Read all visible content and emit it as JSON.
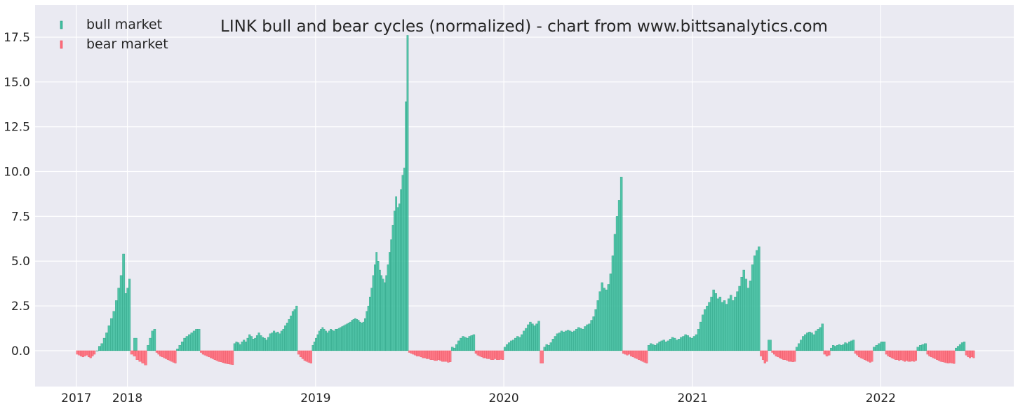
{
  "chart_data": {
    "type": "bar",
    "title": "LINK bull and bear cycles (normalized)  - chart from www.bittsanalytics.com",
    "xlabel": "",
    "ylabel": "",
    "ylim": [
      -2.0,
      19.3
    ],
    "xlim": [
      "2017-07-06",
      "2022-09-16"
    ],
    "grid": true,
    "legend": "top-left",
    "x_ticks": [
      {
        "date": "2017-09-24",
        "label": "2017"
      },
      {
        "date": "2018-01-01",
        "label": "2018"
      },
      {
        "date": "2019-01-01",
        "label": "2019"
      },
      {
        "date": "2020-01-01",
        "label": "2020"
      },
      {
        "date": "2021-01-01",
        "label": "2021"
      },
      {
        "date": "2022-01-01",
        "label": "2022"
      }
    ],
    "y_ticks": [
      {
        "value": 0.0,
        "label": "0.0"
      },
      {
        "value": 2.5,
        "label": "2.5"
      },
      {
        "value": 5.0,
        "label": "5.0"
      },
      {
        "value": 7.5,
        "label": "7.5"
      },
      {
        "value": 10.0,
        "label": "10.0"
      },
      {
        "value": 12.5,
        "label": "12.5"
      },
      {
        "value": 15.0,
        "label": "15.0"
      },
      {
        "value": 17.5,
        "label": "17.5"
      }
    ],
    "series": [
      {
        "name": "bull market",
        "color": "#3fbf9f"
      },
      {
        "name": "bear market",
        "color": "#ff6b7a"
      }
    ],
    "colors": {
      "background": "#eaeaf2",
      "grid": "#ffffff",
      "bull_edge": "#2a9d80",
      "bear_edge": "#e8505f"
    },
    "bull_segments": [
      {
        "start": "2017-11-01",
        "end": "2017-12-26",
        "values": [
          0.0,
          0.25,
          0.4,
          0.7,
          1.0,
          1.4,
          1.8,
          2.2,
          2.8,
          3.5,
          4.2,
          5.4
        ]
      },
      {
        "start": "2017-12-27",
        "end": "2018-01-06",
        "values": [
          3.2,
          3.5,
          4.0
        ]
      },
      {
        "start": "2018-01-13",
        "end": "2018-01-19",
        "values": [
          0.7
        ]
      },
      {
        "start": "2018-02-08",
        "end": "2018-02-24",
        "values": [
          0.3,
          0.7,
          1.1,
          1.2
        ]
      },
      {
        "start": "2018-04-06",
        "end": "2018-05-21",
        "values": [
          0.1,
          0.3,
          0.5,
          0.7,
          0.8,
          0.9,
          1.0,
          1.1,
          1.2,
          1.2
        ]
      },
      {
        "start": "2018-07-26",
        "end": "2018-11-26",
        "values": [
          0.4,
          0.5,
          0.45,
          0.35,
          0.5,
          0.6,
          0.5,
          0.7,
          0.9,
          0.8,
          0.65,
          0.7,
          0.85,
          1.0,
          0.85,
          0.75,
          0.7,
          0.6,
          0.75,
          0.95,
          1.0,
          1.1,
          1.0,
          1.05,
          0.95,
          1.1,
          1.2,
          1.4,
          1.55,
          1.75,
          1.95,
          2.2,
          2.3,
          2.5
        ]
      },
      {
        "start": "2018-12-25",
        "end": "2019-06-29",
        "values": [
          0.3,
          0.5,
          0.7,
          0.9,
          1.1,
          1.2,
          1.3,
          1.2,
          1.1,
          1.0,
          1.1,
          1.2,
          1.15,
          1.1,
          1.2,
          1.2,
          1.25,
          1.3,
          1.35,
          1.4,
          1.45,
          1.5,
          1.55,
          1.6,
          1.7,
          1.75,
          1.8,
          1.75,
          1.7,
          1.6,
          1.55,
          1.6,
          1.8,
          2.2,
          2.5,
          3.0,
          3.5,
          4.2,
          4.8,
          5.5,
          5.0,
          4.5,
          4.2,
          4.0,
          3.8,
          4.2,
          4.8,
          5.5,
          6.2,
          7.0,
          7.8,
          8.6,
          8.0,
          8.2,
          9.0,
          9.8,
          10.2,
          13.9,
          17.6
        ]
      },
      {
        "start": "2019-09-21",
        "end": "2019-11-05",
        "values": [
          0.2,
          0.15,
          0.35,
          0.55,
          0.7,
          0.8,
          0.75,
          0.7,
          0.8,
          0.85,
          0.9
        ]
      },
      {
        "start": "2020-01-01",
        "end": "2020-03-10",
        "values": [
          0.2,
          0.35,
          0.45,
          0.55,
          0.6,
          0.7,
          0.8,
          0.75,
          0.9,
          1.1,
          1.25,
          1.45,
          1.6,
          1.5,
          1.4,
          1.5,
          1.65
        ]
      },
      {
        "start": "2020-03-18",
        "end": "2020-08-17",
        "values": [
          0.2,
          0.35,
          0.3,
          0.45,
          0.65,
          0.8,
          0.95,
          1.0,
          1.1,
          1.05,
          1.1,
          1.15,
          1.1,
          1.05,
          1.1,
          1.2,
          1.3,
          1.25,
          1.2,
          1.35,
          1.45,
          1.5,
          1.7,
          1.9,
          2.3,
          2.8,
          3.3,
          3.8,
          3.5,
          3.4,
          3.7,
          4.3,
          5.3,
          6.5,
          7.5,
          8.4,
          9.7
        ]
      },
      {
        "start": "2020-10-06",
        "end": "2021-05-11",
        "values": [
          0.3,
          0.4,
          0.35,
          0.3,
          0.4,
          0.5,
          0.55,
          0.6,
          0.5,
          0.55,
          0.65,
          0.75,
          0.7,
          0.6,
          0.65,
          0.75,
          0.8,
          0.9,
          0.85,
          0.75,
          0.7,
          0.8,
          0.9,
          1.2,
          1.6,
          2.0,
          2.3,
          2.5,
          2.7,
          3.0,
          3.4,
          3.2,
          2.9,
          3.0,
          2.7,
          2.8,
          2.6,
          2.9,
          3.1,
          2.8,
          3.0,
          3.3,
          3.6,
          4.1,
          4.5,
          4.0,
          3.5,
          3.9,
          4.8,
          5.3,
          5.6,
          5.8
        ]
      },
      {
        "start": "2021-05-27",
        "end": "2021-06-02",
        "values": [
          0.6
        ]
      },
      {
        "start": "2021-07-20",
        "end": "2021-09-11",
        "values": [
          0.2,
          0.4,
          0.6,
          0.8,
          0.9,
          1.0,
          1.05,
          1.0,
          0.9,
          1.1,
          1.2,
          1.3,
          1.5
        ]
      },
      {
        "start": "2021-09-25",
        "end": "2021-11-10",
        "values": [
          0.15,
          0.3,
          0.25,
          0.3,
          0.35,
          0.3,
          0.35,
          0.45,
          0.4,
          0.5,
          0.55,
          0.6
        ]
      },
      {
        "start": "2021-12-17",
        "end": "2022-01-09",
        "values": [
          0.2,
          0.3,
          0.4,
          0.5,
          0.5
        ]
      },
      {
        "start": "2022-03-12",
        "end": "2022-03-30",
        "values": [
          0.2,
          0.3,
          0.35,
          0.4
        ]
      },
      {
        "start": "2022-05-25",
        "end": "2022-06-13",
        "values": [
          0.15,
          0.25,
          0.35,
          0.45,
          0.5
        ]
      }
    ],
    "bear_segments": [
      {
        "start": "2017-09-24",
        "end": "2017-10-30",
        "values": [
          -0.2,
          -0.25,
          -0.3,
          -0.35,
          -0.3,
          -0.25,
          -0.35,
          -0.4,
          -0.3,
          -0.2
        ]
      },
      {
        "start": "2018-01-07",
        "end": "2018-02-07",
        "values": [
          -0.2,
          -0.3,
          -0.5,
          -0.6,
          -0.7,
          -0.8
        ]
      },
      {
        "start": "2018-02-25",
        "end": "2018-04-05",
        "values": [
          -0.1,
          -0.2,
          -0.3,
          -0.35,
          -0.4,
          -0.45,
          -0.5,
          -0.55,
          -0.6,
          -0.65,
          -0.7
        ]
      },
      {
        "start": "2018-05-22",
        "end": "2018-07-25",
        "values": [
          -0.1,
          -0.2,
          -0.25,
          -0.3,
          -0.35,
          -0.4,
          -0.45,
          -0.5,
          -0.55,
          -0.6,
          -0.62,
          -0.66,
          -0.7,
          -0.72,
          -0.74,
          -0.76,
          -0.78
        ]
      },
      {
        "start": "2018-11-27",
        "end": "2018-12-24",
        "values": [
          -0.2,
          -0.35,
          -0.45,
          -0.55,
          -0.6,
          -0.65,
          -0.7
        ]
      },
      {
        "start": "2019-06-30",
        "end": "2019-09-20",
        "values": [
          -0.1,
          -0.15,
          -0.2,
          -0.25,
          -0.3,
          -0.3,
          -0.35,
          -0.4,
          -0.4,
          -0.45,
          -0.45,
          -0.5,
          -0.5,
          -0.55,
          -0.55,
          -0.5,
          -0.55,
          -0.6,
          -0.6,
          -0.6,
          -0.65,
          -0.62
        ]
      },
      {
        "start": "2019-11-06",
        "end": "2019-12-31",
        "values": [
          -0.15,
          -0.25,
          -0.3,
          -0.35,
          -0.4,
          -0.4,
          -0.45,
          -0.45,
          -0.5,
          -0.5,
          -0.45,
          -0.5,
          -0.5,
          -0.48,
          -0.5
        ]
      },
      {
        "start": "2020-03-11",
        "end": "2020-03-17",
        "values": [
          -0.7
        ]
      },
      {
        "start": "2020-08-18",
        "end": "2020-10-05",
        "values": [
          -0.15,
          -0.2,
          -0.25,
          -0.2,
          -0.3,
          -0.35,
          -0.4,
          -0.45,
          -0.5,
          -0.55,
          -0.6,
          -0.65,
          -0.7
        ]
      },
      {
        "start": "2021-05-12",
        "end": "2021-05-26",
        "values": [
          -0.3,
          -0.5,
          -0.7,
          -0.6
        ]
      },
      {
        "start": "2021-06-03",
        "end": "2021-07-19",
        "values": [
          -0.1,
          -0.2,
          -0.3,
          -0.35,
          -0.4,
          -0.45,
          -0.5,
          -0.5,
          -0.55,
          -0.6,
          -0.6,
          -0.62,
          -0.6
        ]
      },
      {
        "start": "2021-09-12",
        "end": "2021-09-24",
        "values": [
          -0.2,
          -0.3,
          -0.25
        ]
      },
      {
        "start": "2021-11-11",
        "end": "2021-12-16",
        "values": [
          -0.15,
          -0.25,
          -0.35,
          -0.4,
          -0.45,
          -0.5,
          -0.55,
          -0.6,
          -0.65,
          -0.6
        ]
      },
      {
        "start": "2022-01-10",
        "end": "2022-03-11",
        "values": [
          -0.2,
          -0.3,
          -0.35,
          -0.4,
          -0.45,
          -0.5,
          -0.5,
          -0.55,
          -0.5,
          -0.55,
          -0.6,
          -0.55,
          -0.6,
          -0.6,
          -0.58,
          -0.6,
          -0.55
        ]
      },
      {
        "start": "2022-03-31",
        "end": "2022-05-24",
        "values": [
          -0.2,
          -0.3,
          -0.35,
          -0.4,
          -0.45,
          -0.5,
          -0.55,
          -0.6,
          -0.62,
          -0.65,
          -0.68,
          -0.7,
          -0.68,
          -0.7,
          -0.72
        ]
      },
      {
        "start": "2022-06-14",
        "end": "2022-07-01",
        "values": [
          -0.25,
          -0.35,
          -0.4,
          -0.35,
          -0.4
        ]
      }
    ]
  }
}
